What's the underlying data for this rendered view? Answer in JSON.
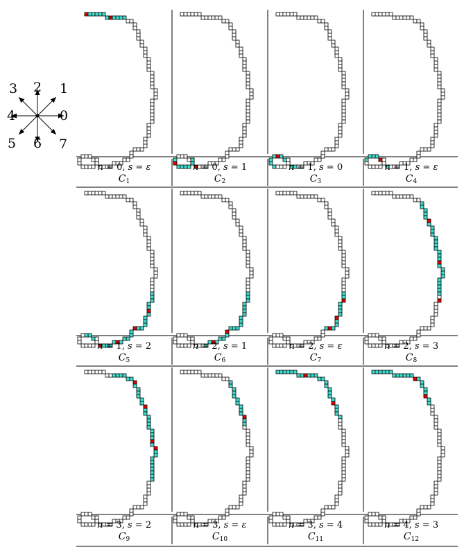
{
  "direction_legend": {
    "labels": [
      "0",
      "1",
      "2",
      "3",
      "4",
      "5",
      "6",
      "7"
    ]
  },
  "colors": {
    "cell_fill": "#ffffff",
    "cell_stroke": "#000000",
    "highlight": "#40e0d0",
    "marker": "#e60000",
    "line": "#000000"
  },
  "grid_panels": [
    {
      "id": "C1",
      "n": "0",
      "s": "ε",
      "sub": "1"
    },
    {
      "id": "C2",
      "n": "0",
      "s": "1",
      "sub": "2"
    },
    {
      "id": "C3",
      "n": "1",
      "s": "0",
      "sub": "3"
    },
    {
      "id": "C4",
      "n": "1",
      "s": "ε",
      "sub": "4"
    },
    {
      "id": "C5",
      "n": "1",
      "s": "2",
      "sub": "5"
    },
    {
      "id": "C6",
      "n": "2",
      "s": "1",
      "sub": "6"
    },
    {
      "id": "C7",
      "n": "2",
      "s": "ε",
      "sub": "7"
    },
    {
      "id": "C8",
      "n": "2",
      "s": "3",
      "sub": "8"
    },
    {
      "id": "C9",
      "n": "3",
      "s": "2",
      "sub": "9"
    },
    {
      "id": "C10",
      "n": "3",
      "s": "ε",
      "sub": "10"
    },
    {
      "id": "C11",
      "n": "3",
      "s": "4",
      "sub": "11"
    },
    {
      "id": "C12",
      "n": "4",
      "s": "3",
      "sub": "12"
    }
  ],
  "label_template": {
    "n": "n",
    "s": "s",
    "eq": " = ",
    "sep": ", ",
    "C": "C"
  }
}
